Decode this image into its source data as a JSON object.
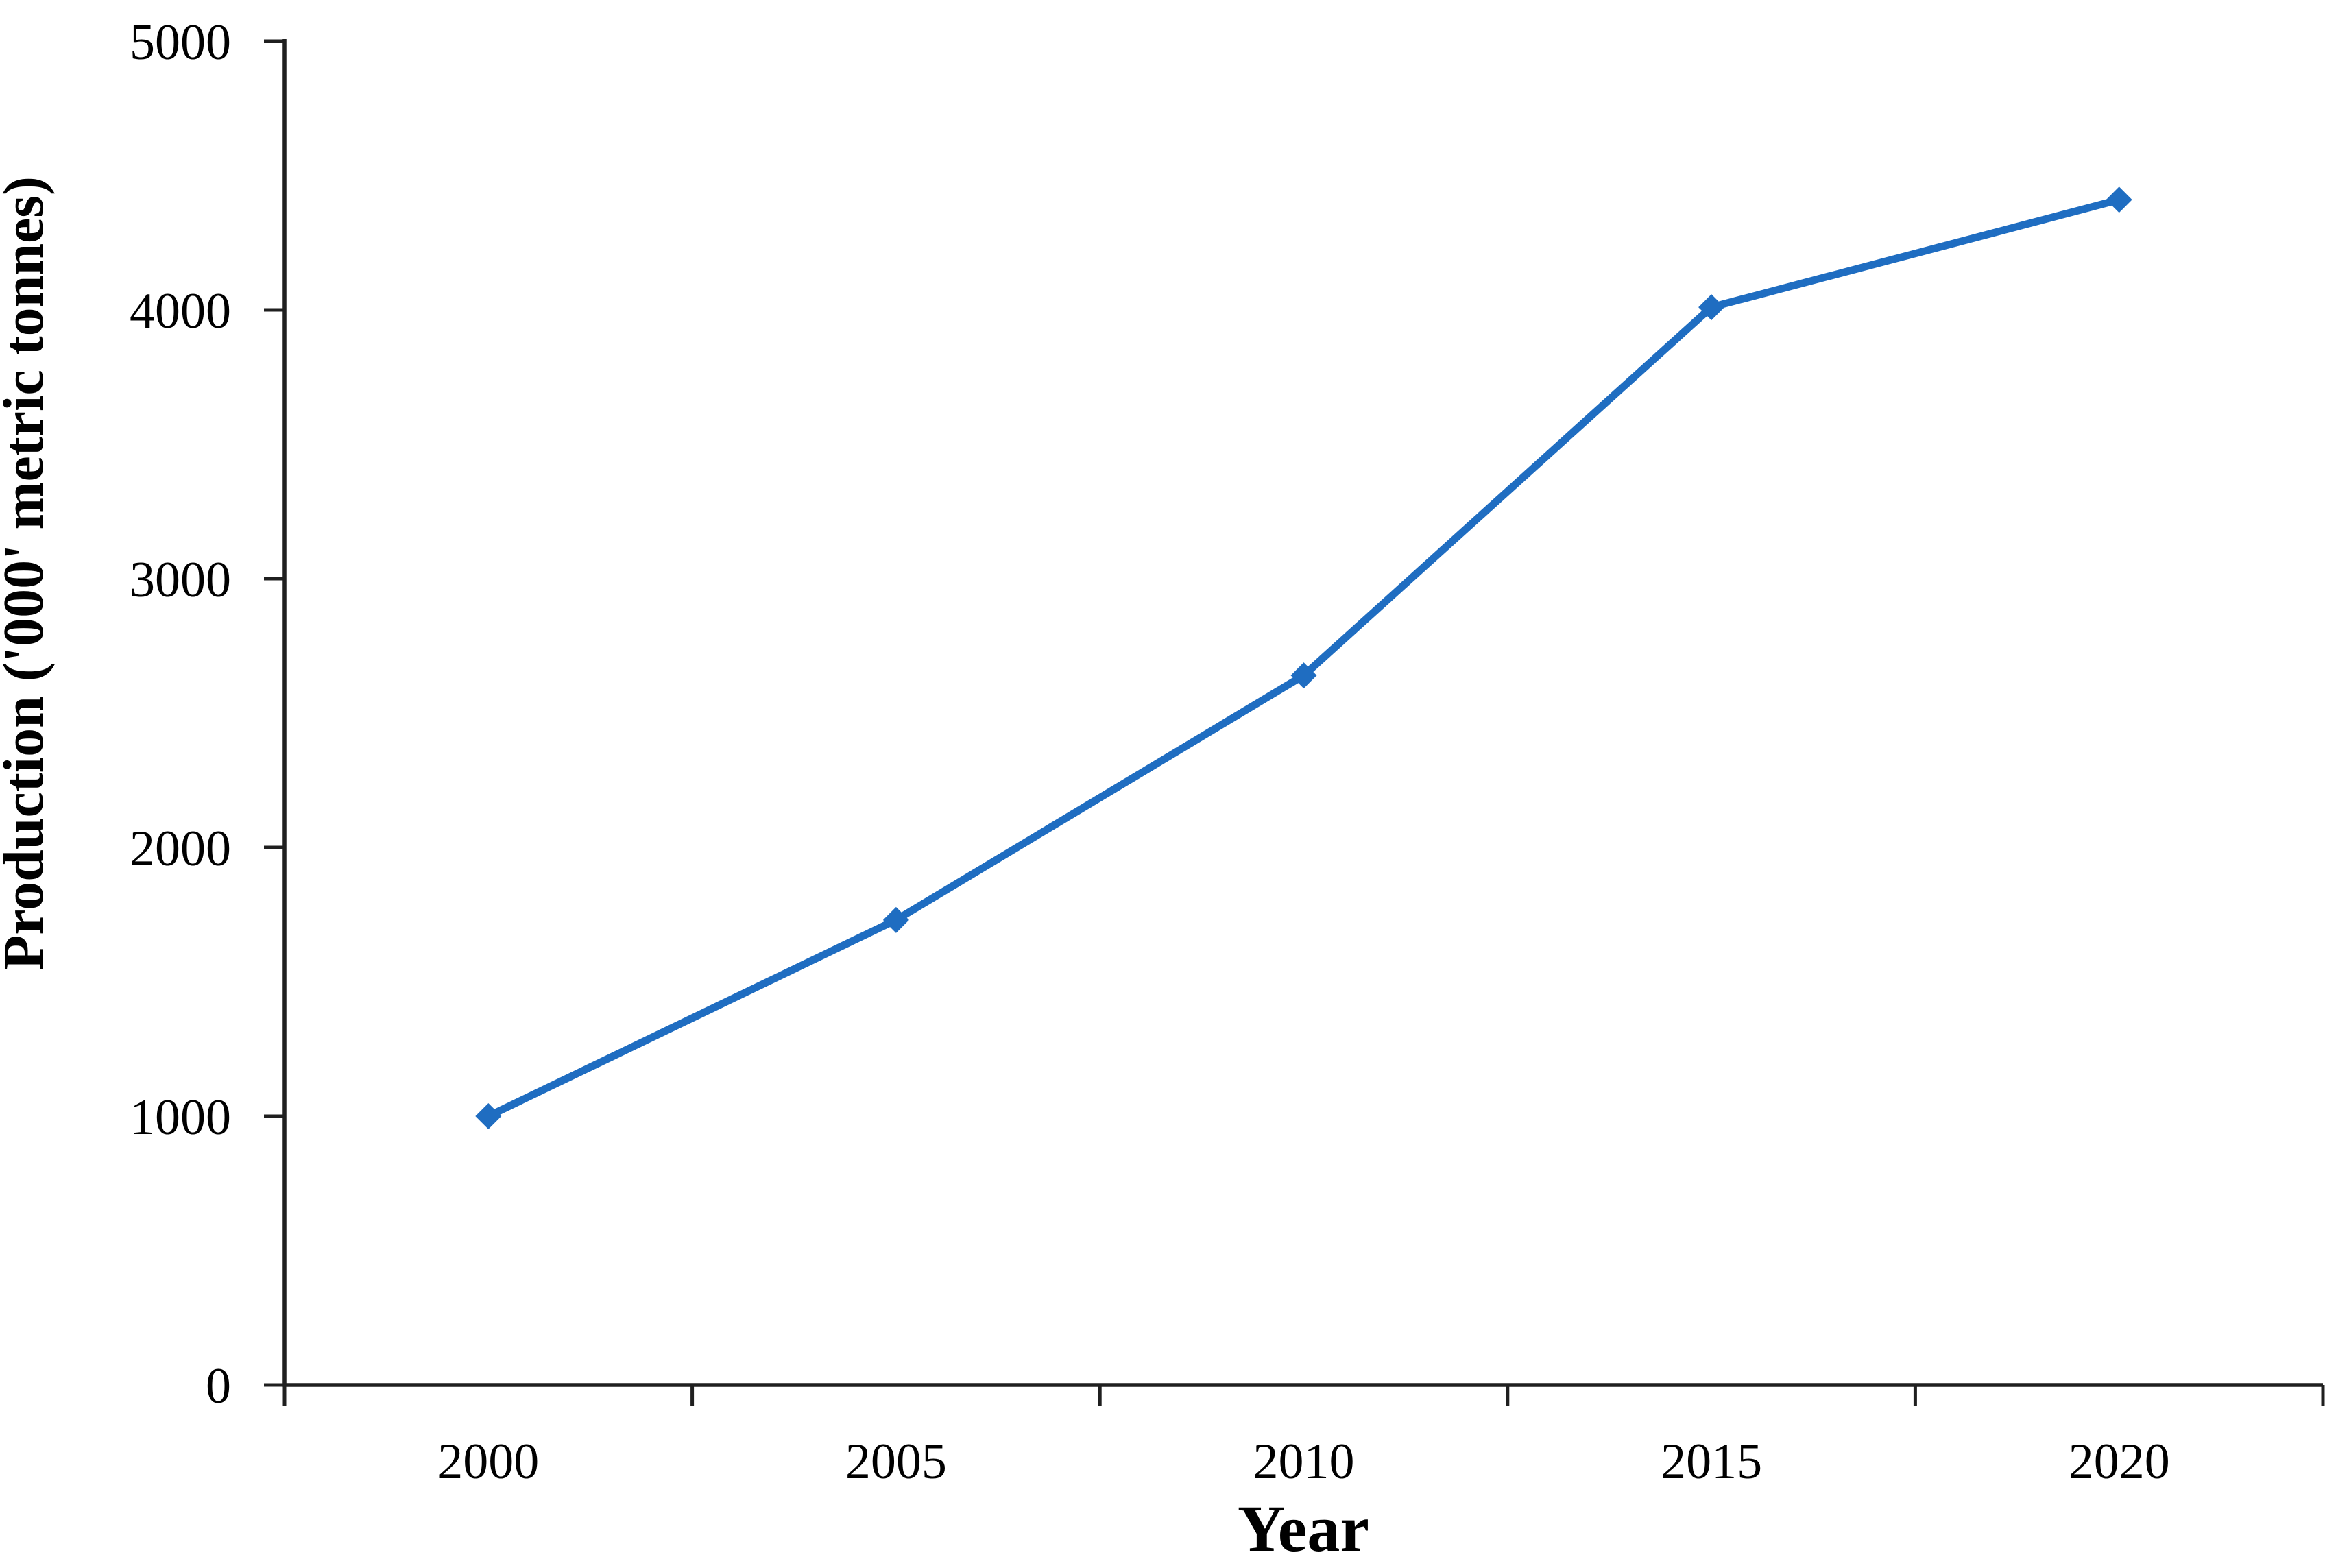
{
  "chart_data": {
    "type": "line",
    "title": "",
    "xlabel": "Year",
    "ylabel": "Production ('000' metric tonnes)",
    "categories": [
      "2000",
      "2005",
      "2010",
      "2015",
      "2020"
    ],
    "values": [
      1000,
      1730,
      2640,
      4010,
      4410
    ],
    "ylim": [
      0,
      5000
    ],
    "yticks": [
      0,
      1000,
      2000,
      3000,
      4000,
      5000
    ],
    "ytick_interval": 1000,
    "grid": false,
    "legend": "none",
    "marker": "diamond",
    "line_color": "#1f6dc1",
    "axis_color": "#1f1f1f",
    "text_color": "#000000",
    "background_color": "#ffffff"
  }
}
